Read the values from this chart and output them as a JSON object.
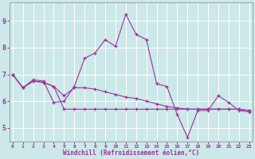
{
  "xlabel": "Windchill (Refroidissement éolien,°C)",
  "background_color": "#cce8e8",
  "line_color": "#993399",
  "grid_color": "#ffffff",
  "x_ticks": [
    0,
    1,
    2,
    3,
    4,
    5,
    6,
    7,
    8,
    9,
    10,
    11,
    12,
    13,
    14,
    15,
    16,
    17,
    18,
    19,
    20,
    21,
    22,
    23
  ],
  "y_ticks": [
    5,
    6,
    7,
    8,
    9
  ],
  "ylim": [
    4.5,
    9.7
  ],
  "xlim": [
    -0.3,
    23.3
  ],
  "line1_y": [
    7.0,
    6.5,
    6.8,
    6.75,
    5.95,
    6.0,
    6.55,
    7.6,
    7.8,
    8.3,
    8.05,
    9.25,
    8.5,
    8.3,
    6.65,
    6.55,
    5.5,
    4.65,
    5.65,
    5.65,
    6.2,
    5.95,
    5.65,
    5.6
  ],
  "line2_y": [
    7.0,
    6.5,
    6.75,
    6.7,
    6.55,
    5.7,
    5.7,
    5.7,
    5.7,
    5.7,
    5.7,
    5.7,
    5.7,
    5.7,
    5.7,
    5.7,
    5.7,
    5.7,
    5.7,
    5.7,
    5.7,
    5.7,
    5.7,
    5.65
  ],
  "line3_y": [
    7.0,
    6.5,
    6.75,
    6.7,
    6.55,
    6.2,
    6.5,
    6.5,
    6.45,
    6.35,
    6.25,
    6.15,
    6.1,
    6.0,
    5.9,
    5.8,
    5.75,
    5.7,
    5.7,
    5.7,
    5.7,
    5.7,
    5.7,
    5.65
  ]
}
